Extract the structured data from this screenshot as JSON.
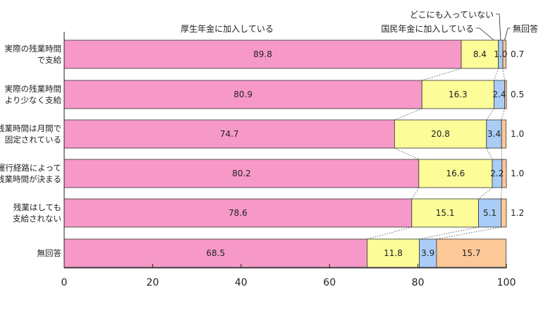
{
  "chart_data": {
    "type": "bar",
    "orientation": "horizontal",
    "stacked": true,
    "categories": [
      [
        "実際の残業時間",
        "で支給"
      ],
      [
        "実際の残業時間",
        "より少なく支給"
      ],
      [
        "残業時間は月間で",
        "固定されている"
      ],
      [
        "運行経路によって",
        "残業時間が決まる"
      ],
      [
        "残業はしても",
        "支給されない"
      ],
      [
        "無回答"
      ]
    ],
    "series": [
      {
        "name": "厚生年金に加入している",
        "color": "#f799c8",
        "values": [
          89.8,
          80.9,
          74.7,
          80.2,
          78.6,
          68.5
        ]
      },
      {
        "name": "国民年金に加入している",
        "color": "#fcfc99",
        "values": [
          8.4,
          16.3,
          20.8,
          16.6,
          15.1,
          11.8
        ]
      },
      {
        "name": "どこにも入っていない",
        "color": "#a9cdf7",
        "values": [
          1.0,
          2.4,
          3.4,
          2.2,
          5.1,
          3.9
        ]
      },
      {
        "name": "無回答",
        "color": "#fcc898",
        "values": [
          0.7,
          0.5,
          1.0,
          1.0,
          1.2,
          15.7
        ]
      }
    ],
    "value_labels": [
      [
        "89.8",
        "8.4",
        "1.0",
        "0.7"
      ],
      [
        "80.9",
        "16.3",
        "2.4",
        "0.5"
      ],
      [
        "74.7",
        "20.8",
        "3.4",
        "1.0"
      ],
      [
        "80.2",
        "16.6",
        "2.2",
        "1.0"
      ],
      [
        "78.6",
        "15.1",
        "5.1",
        "1.2"
      ],
      [
        "68.5",
        "11.8",
        "3.9",
        "15.7"
      ]
    ],
    "xlim": [
      0,
      100
    ],
    "xticks": [
      0,
      20,
      40,
      60,
      80,
      100
    ],
    "xtick_labels": [
      "0",
      "20",
      "40",
      "60",
      "80",
      "100"
    ],
    "grid": false,
    "connector_lines": true,
    "legend_labels": [
      "厚生年金に加入している",
      "国民年金に加入している",
      "どこにも入っていない",
      "無回答"
    ]
  }
}
